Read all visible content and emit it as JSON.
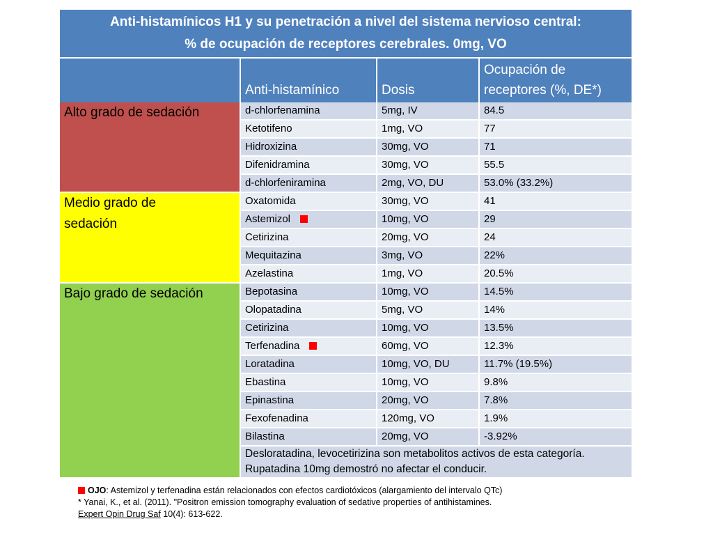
{
  "title": {
    "line1": "Anti-histamínicos H1 y su penetración a nivel del sistema nervioso central:",
    "line2": "% de ocupación de receptores cerebrales. 0mg, VO"
  },
  "headers": {
    "antihistaminico": "Anti-histamínico",
    "dosis": "Dosis",
    "ocupacion_line1": "Ocupación de",
    "ocupacion_line2": "receptores (%, DE*)"
  },
  "categories": {
    "alto": "Alto grado de  sedación",
    "medio_line1": "Medio grado de",
    "medio_line2": "sedación",
    "bajo": "Bajo grado de sedación"
  },
  "warning_color": "#ff0000",
  "rows": [
    {
      "drug": "d-chlorfenamina",
      "dose": "5mg, IV",
      "occ": "84.5"
    },
    {
      "drug": "Ketotifeno",
      "dose": "1mg, VO",
      "occ": "77"
    },
    {
      "drug": "Hidroxizina",
      "dose": "30mg, VO",
      "occ": "71"
    },
    {
      "drug": "Difenidramina",
      "dose": "30mg, VO",
      "occ": "55.5"
    },
    {
      "drug": "d-chlorfeniramina",
      "dose": "2mg, VO, DU",
      "occ": "53.0% (33.2%)"
    },
    {
      "drug": "Oxatomida",
      "dose": "30mg, VO",
      "occ": "41"
    },
    {
      "drug": "Astemizol",
      "dose": "10mg, VO",
      "occ": "29",
      "warning": true
    },
    {
      "drug": "Cetirizina",
      "dose": "20mg, VO",
      "occ": "24"
    },
    {
      "drug": "Mequitazina",
      "dose": "3mg, VO",
      "occ": "22%"
    },
    {
      "drug": "Azelastina",
      "dose": "1mg, VO",
      "occ": "20.5%"
    },
    {
      "drug": "Bepotasina",
      "dose": "10mg, VO",
      "occ": "14.5%"
    },
    {
      "drug": "Olopatadina",
      "dose": "5mg, VO",
      "occ": "14%"
    },
    {
      "drug": "Cetirizina",
      "dose": "10mg, VO",
      "occ": "13.5%"
    },
    {
      "drug": "Terfenadina",
      "dose": "60mg, VO",
      "occ": "12.3%",
      "warning": true
    },
    {
      "drug": "Loratadina",
      "dose": "10mg, VO, DU",
      "occ": "11.7% (19.5%)"
    },
    {
      "drug": "Ebastina",
      "dose": "10mg, VO",
      "occ": "9.8%"
    },
    {
      "drug": "Epinastina",
      "dose": "20mg, VO",
      "occ": "7.8%"
    },
    {
      "drug": "Fexofenadina",
      "dose": "120mg, VO",
      "occ": "1.9%"
    },
    {
      "drug": "Bilastina",
      "dose": "20mg, VO",
      "occ": "-3.92%"
    }
  ],
  "note": "Desloratadina,  levocetirizina son metabolitos activos de esta categoría. Rupatadina 10mg demostró no afectar el conducir.",
  "footer": {
    "ojo_label": "OJO",
    "ojo_text": ": Astemizol y terfenadina están relacionados con efectos cardiotóxicos (alargamiento del intervalo QTc)",
    "ref_line": "* Yanai, K., et al. (2011). \"Positron emission tomography evaluation of sedative properties of antihistamines.",
    "journal": "Expert Opin Drug Saf",
    "journal_rest": " 10(4): 613-622."
  }
}
